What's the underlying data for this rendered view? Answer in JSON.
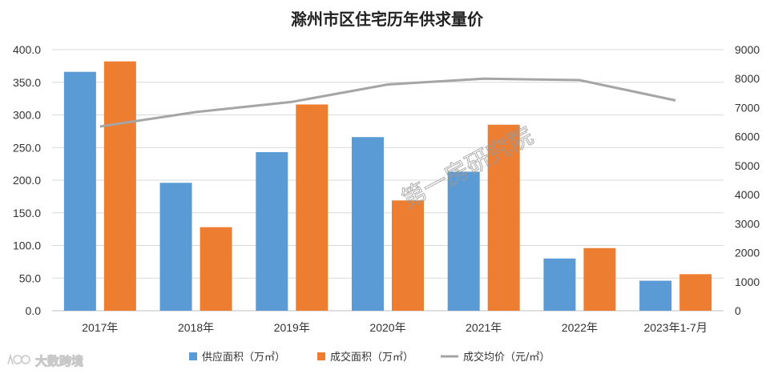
{
  "chart_data": {
    "type": "bar",
    "title": "滁州市区住宅历年供求量价",
    "categories": [
      "2017年",
      "2018年",
      "2019年",
      "2020年",
      "2021年",
      "2022年",
      "2023年1-7月"
    ],
    "series": [
      {
        "name": "供应面积（万㎡）",
        "type": "bar",
        "axis": "left",
        "color": "#5B9BD5",
        "values": [
          366,
          196,
          243,
          266,
          213,
          80,
          46
        ]
      },
      {
        "name": "成交面积（万㎡）",
        "type": "bar",
        "axis": "left",
        "color": "#ED7D31",
        "values": [
          382,
          128,
          316,
          169,
          285,
          96,
          56
        ]
      },
      {
        "name": "成交均价（元/㎡）",
        "type": "line",
        "axis": "right",
        "color": "#A5A5A5",
        "values": [
          6350,
          6850,
          7200,
          7800,
          8000,
          7950,
          7250
        ]
      }
    ],
    "y_left": {
      "min": 0,
      "max": 400,
      "step": 50,
      "tick_labels": [
        "0.0",
        "50.0",
        "100.0",
        "150.0",
        "200.0",
        "250.0",
        "300.0",
        "350.0",
        "400.0"
      ]
    },
    "y_right": {
      "min": 0,
      "max": 9000,
      "step": 1000,
      "tick_labels": [
        "0",
        "1000",
        "2000",
        "3000",
        "4000",
        "5000",
        "6000",
        "7000",
        "8000",
        "9000"
      ]
    },
    "grid": true,
    "legend_position": "bottom"
  },
  "watermark": "第一房研究院",
  "logo": {
    "text": "大数跨境"
  }
}
